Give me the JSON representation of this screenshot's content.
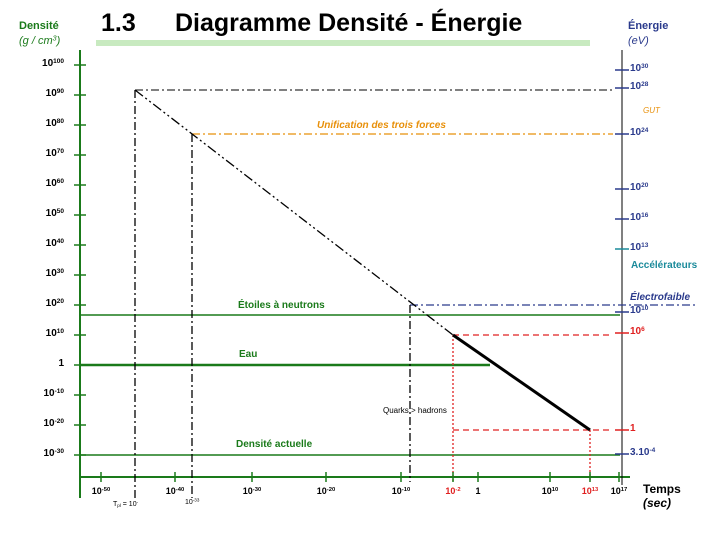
{
  "header": {
    "number": "1.3",
    "title": "Diagramme Densité - Énergie"
  },
  "left_axis": {
    "title": "Densité",
    "unit_base": "(g / cm",
    "unit_exp": "3",
    "unit_end": ")",
    "ticks": [
      {
        "base": "10",
        "exp": "100"
      },
      {
        "base": "10",
        "exp": "90"
      },
      {
        "base": "10",
        "exp": "80"
      },
      {
        "base": "10",
        "exp": "70"
      },
      {
        "base": "10",
        "exp": "60"
      },
      {
        "base": "10",
        "exp": "50"
      },
      {
        "base": "10",
        "exp": "40"
      },
      {
        "base": "10",
        "exp": "30"
      },
      {
        "base": "10",
        "exp": "20"
      },
      {
        "base": "10",
        "exp": "10"
      },
      {
        "base": "1",
        "exp": ""
      },
      {
        "base": "10",
        "exp": "-10"
      },
      {
        "base": "10",
        "exp": "-20"
      },
      {
        "base": "10",
        "exp": "-30"
      }
    ]
  },
  "right_axis": {
    "title": "Énergie",
    "unit": "(eV)",
    "ticks": [
      {
        "base": "10",
        "exp": "30"
      },
      {
        "base": "10",
        "exp": "28"
      },
      {
        "base": "10",
        "exp": "24"
      },
      {
        "base": "10",
        "exp": "20"
      },
      {
        "base": "10",
        "exp": "16"
      },
      {
        "base": "10",
        "exp": "13"
      },
      {
        "base": "10",
        "exp": "10"
      },
      {
        "base": "10",
        "exp": "6"
      },
      {
        "base": "1",
        "exp": ""
      },
      {
        "base": "3.10",
        "exp": "-4"
      }
    ]
  },
  "x_axis": {
    "title": "Temps",
    "unit": "(sec)",
    "ticks": [
      {
        "base": "10",
        "exp": "-50"
      },
      {
        "base": "10",
        "exp": "-40"
      },
      {
        "base": "10",
        "exp": "-30"
      },
      {
        "base": "10",
        "exp": "-20"
      },
      {
        "base": "10",
        "exp": "-10"
      },
      {
        "base": "10",
        "exp": "-2"
      },
      {
        "base": "1",
        "exp": ""
      },
      {
        "base": "10",
        "exp": "10"
      },
      {
        "base": "10",
        "exp": "13"
      },
      {
        "base": "10",
        "exp": "17"
      }
    ],
    "planck_note_a": "T",
    "planck_note_sub": "pl",
    "planck_note_b": " = 10",
    "planck_note_sup": "-",
    "extra_tick": "10",
    "extra_tick_exp": "-33"
  },
  "annotations": {
    "unification": "Unification des trois forces",
    "gut": "GUT",
    "accelerateurs": "Accélérateurs",
    "electrofaible": "Électrofaible",
    "etoiles": "Étoiles à neutrons",
    "eau": "Eau",
    "quarks": "Quarks > hadrons",
    "densite_actuelle": "Densité actuelle"
  },
  "colors": {
    "green": "#1a7a1a",
    "blue": "#2a3a8c",
    "orange": "#e8900a",
    "red": "#e02020",
    "black": "#000000",
    "teal": "#1a8a9a",
    "title_underline": "#c8eac0"
  }
}
